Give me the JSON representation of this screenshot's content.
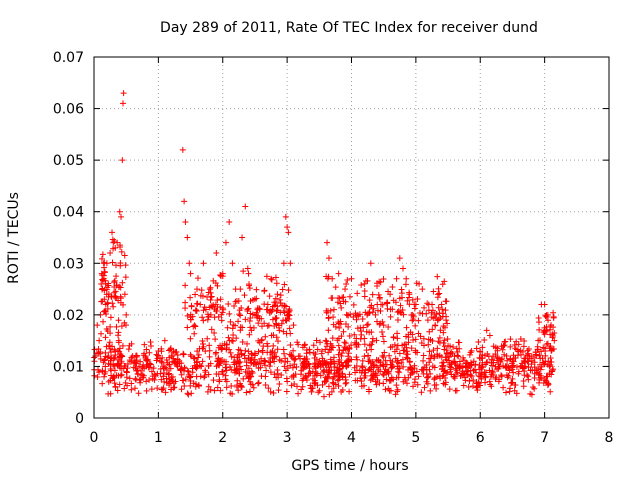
{
  "chart_data": {
    "type": "scatter",
    "title": "Day 289 of 2011, Rate Of TEC Index for receiver dund",
    "xlabel": "GPS time / hours",
    "ylabel": "ROTI / TECUs",
    "xlim": [
      0,
      8
    ],
    "ylim": [
      0,
      0.07
    ],
    "x_ticks": [
      0,
      1,
      2,
      3,
      4,
      5,
      6,
      7,
      8
    ],
    "y_ticks": [
      0,
      0.01,
      0.02,
      0.03,
      0.04,
      0.05,
      0.06,
      0.07
    ],
    "x_tick_labels": [
      "0",
      "1",
      "2",
      "3",
      "4",
      "5",
      "6",
      "7",
      "8"
    ],
    "y_tick_labels": [
      "0",
      "0.01",
      "0.02",
      "0.03",
      "0.04",
      "0.05",
      "0.06",
      "0.07"
    ],
    "grid": true,
    "legend": "none",
    "marker": "plus",
    "color": "#ff0000",
    "points": [
      [
        0.02,
        0.012
      ],
      [
        0.05,
        0.018
      ],
      [
        0.08,
        0.015
      ],
      [
        0.1,
        0.02
      ],
      [
        0.12,
        0.028
      ],
      [
        0.15,
        0.03
      ],
      [
        0.18,
        0.026
      ],
      [
        0.2,
        0.03
      ],
      [
        0.25,
        0.032
      ],
      [
        0.28,
        0.036
      ],
      [
        0.3,
        0.034
      ],
      [
        0.33,
        0.033
      ],
      [
        0.36,
        0.034
      ],
      [
        0.4,
        0.04
      ],
      [
        0.42,
        0.039
      ],
      [
        0.44,
        0.05
      ],
      [
        0.45,
        0.061
      ],
      [
        0.46,
        0.063
      ],
      [
        0.48,
        0.024
      ],
      [
        0.5,
        0.02
      ],
      [
        0.55,
        0.014
      ],
      [
        0.6,
        0.012
      ],
      [
        0.7,
        0.01
      ],
      [
        0.8,
        0.012
      ],
      [
        0.9,
        0.009
      ],
      [
        1.0,
        0.013
      ],
      [
        1.1,
        0.015
      ],
      [
        1.2,
        0.012
      ],
      [
        1.3,
        0.011
      ],
      [
        1.38,
        0.052
      ],
      [
        1.4,
        0.042
      ],
      [
        1.42,
        0.038
      ],
      [
        1.45,
        0.035
      ],
      [
        1.48,
        0.03
      ],
      [
        1.5,
        0.028
      ],
      [
        1.6,
        0.025
      ],
      [
        1.65,
        0.022
      ],
      [
        1.7,
        0.03
      ],
      [
        1.8,
        0.025
      ],
      [
        1.9,
        0.032
      ],
      [
        2.0,
        0.028
      ],
      [
        2.05,
        0.034
      ],
      [
        2.1,
        0.038
      ],
      [
        2.15,
        0.03
      ],
      [
        2.2,
        0.025
      ],
      [
        2.3,
        0.035
      ],
      [
        2.35,
        0.041
      ],
      [
        2.4,
        0.028
      ],
      [
        2.5,
        0.02
      ],
      [
        2.6,
        0.015
      ],
      [
        2.7,
        0.022
      ],
      [
        2.75,
        0.027
      ],
      [
        2.85,
        0.024
      ],
      [
        2.95,
        0.03
      ],
      [
        2.98,
        0.039
      ],
      [
        3.0,
        0.037
      ],
      [
        3.02,
        0.036
      ],
      [
        3.05,
        0.03
      ],
      [
        3.1,
        0.018
      ],
      [
        3.2,
        0.012
      ],
      [
        3.3,
        0.01
      ],
      [
        3.4,
        0.009
      ],
      [
        3.5,
        0.011
      ],
      [
        3.6,
        0.015
      ],
      [
        3.62,
        0.034
      ],
      [
        3.65,
        0.031
      ],
      [
        3.7,
        0.027
      ],
      [
        3.8,
        0.028
      ],
      [
        3.9,
        0.025
      ],
      [
        4.0,
        0.027
      ],
      [
        4.1,
        0.02
      ],
      [
        4.2,
        0.026
      ],
      [
        4.3,
        0.03
      ],
      [
        4.4,
        0.022
      ],
      [
        4.5,
        0.018
      ],
      [
        4.6,
        0.024
      ],
      [
        4.7,
        0.027
      ],
      [
        4.75,
        0.031
      ],
      [
        4.8,
        0.029
      ],
      [
        4.85,
        0.027
      ],
      [
        4.9,
        0.024
      ],
      [
        4.95,
        0.02
      ],
      [
        5.0,
        0.022
      ],
      [
        5.05,
        0.026
      ],
      [
        5.1,
        0.025
      ],
      [
        5.2,
        0.022
      ],
      [
        5.3,
        0.018
      ],
      [
        5.4,
        0.022
      ],
      [
        5.5,
        0.014
      ],
      [
        5.6,
        0.012
      ],
      [
        5.7,
        0.01
      ],
      [
        5.8,
        0.009
      ],
      [
        5.9,
        0.011
      ],
      [
        6.0,
        0.008
      ],
      [
        6.1,
        0.017
      ],
      [
        6.15,
        0.016
      ],
      [
        6.2,
        0.012
      ],
      [
        6.3,
        0.01
      ],
      [
        6.4,
        0.01
      ],
      [
        6.5,
        0.011
      ],
      [
        6.6,
        0.009
      ],
      [
        6.7,
        0.01
      ],
      [
        6.8,
        0.012
      ],
      [
        6.9,
        0.015
      ],
      [
        6.95,
        0.022
      ],
      [
        7.0,
        0.022
      ],
      [
        7.05,
        0.02
      ],
      [
        7.1,
        0.018
      ],
      [
        7.15,
        0.015
      ]
    ],
    "bands": [
      {
        "x_start": 0.0,
        "x_end": 7.15,
        "y_min": 0.004,
        "y_max": 0.016,
        "count": 1300
      },
      {
        "x_start": 0.1,
        "x_end": 0.5,
        "y_min": 0.012,
        "y_max": 0.036,
        "count": 90
      },
      {
        "x_start": 1.4,
        "x_end": 2.6,
        "y_min": 0.012,
        "y_max": 0.03,
        "count": 140
      },
      {
        "x_start": 2.6,
        "x_end": 3.05,
        "y_min": 0.012,
        "y_max": 0.028,
        "count": 70
      },
      {
        "x_start": 3.6,
        "x_end": 5.5,
        "y_min": 0.012,
        "y_max": 0.028,
        "count": 220
      },
      {
        "x_start": 6.9,
        "x_end": 7.15,
        "y_min": 0.012,
        "y_max": 0.022,
        "count": 30
      }
    ]
  }
}
